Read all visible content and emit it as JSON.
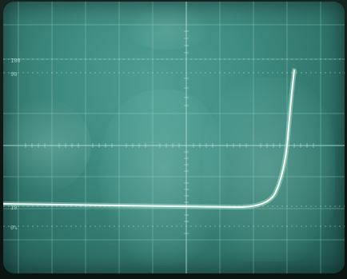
{
  "scope": {
    "graticule_labels": {
      "top_100": "100",
      "top_90": "90",
      "bottom_10": "10",
      "bottom_0": "0%"
    },
    "colors": {
      "screen": "#3f8c82",
      "trace": "#e8fff2",
      "grid": "#9fd6cc"
    }
  }
}
